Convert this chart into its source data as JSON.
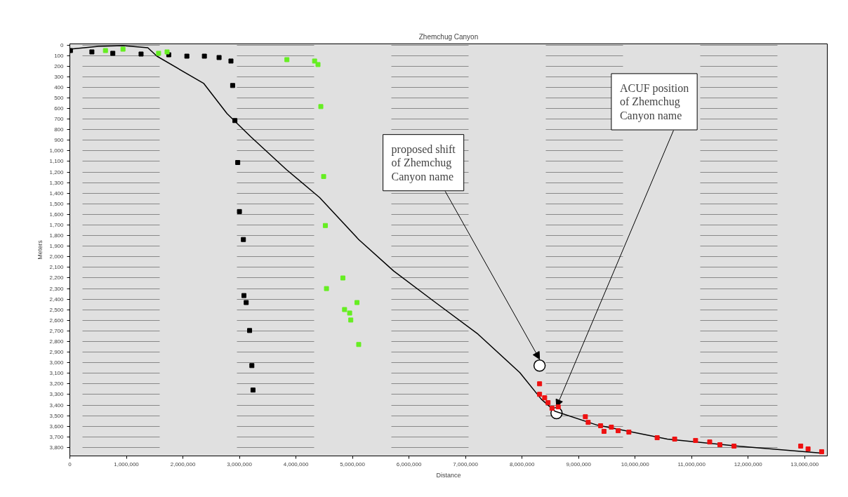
{
  "chart_data": {
    "type": "scatter",
    "title": "Zhemchug Canyon",
    "xlabel": "Distance",
    "ylabel": "Meters",
    "xlim": [
      0,
      13400000
    ],
    "ylim": [
      3880,
      -10
    ],
    "xticks": [
      {
        "value": 0,
        "label": "0"
      },
      {
        "value": 1000000,
        "label": "1,000,000"
      },
      {
        "value": 2000000,
        "label": "2,000,000"
      },
      {
        "value": 3000000,
        "label": "3,000,000"
      },
      {
        "value": 4000000,
        "label": "4,000,000"
      },
      {
        "value": 5000000,
        "label": "5,000,000"
      },
      {
        "value": 6000000,
        "label": "6,000,000"
      },
      {
        "value": 7000000,
        "label": "7,000,000"
      },
      {
        "value": 8000000,
        "label": "8,000,000"
      },
      {
        "value": 9000000,
        "label": "9,000,000"
      },
      {
        "value": 10000000,
        "label": "10,000,000"
      },
      {
        "value": 11000000,
        "label": "11,000,000"
      },
      {
        "value": 12000000,
        "label": "12,000,000"
      },
      {
        "value": 13000000,
        "label": "13,000,000"
      }
    ],
    "yticks": [
      0,
      100,
      200,
      300,
      400,
      500,
      600,
      700,
      800,
      900,
      {
        "value": 1000,
        "label": "1,000"
      },
      {
        "value": 1100,
        "label": "1,100"
      },
      {
        "value": 1200,
        "label": "1,200"
      },
      {
        "value": 1300,
        "label": "1,300"
      },
      {
        "value": 1400,
        "label": "1,400"
      },
      {
        "value": 1500,
        "label": "1,500"
      },
      {
        "value": 1600,
        "label": "1,600"
      },
      {
        "value": 1700,
        "label": "1,700"
      },
      {
        "value": 1800,
        "label": "1,800"
      },
      {
        "value": 1900,
        "label": "1,900"
      },
      {
        "value": 2000,
        "label": "2,000"
      },
      {
        "value": 2100,
        "label": "2,100"
      },
      {
        "value": 2200,
        "label": "2,200"
      },
      {
        "value": 2300,
        "label": "2,300"
      },
      {
        "value": 2400,
        "label": "2,400"
      },
      {
        "value": 2500,
        "label": "2,500"
      },
      {
        "value": 2600,
        "label": "2,600"
      },
      {
        "value": 2700,
        "label": "2,700"
      },
      {
        "value": 2800,
        "label": "2,800"
      },
      {
        "value": 2900,
        "label": "2,900"
      },
      {
        "value": 3000,
        "label": "3,000"
      },
      {
        "value": 3100,
        "label": "3,100"
      },
      {
        "value": 3200,
        "label": "3,200"
      },
      {
        "value": 3300,
        "label": "3,300"
      },
      {
        "value": 3400,
        "label": "3,400"
      },
      {
        "value": 3500,
        "label": "3,500"
      },
      {
        "value": 3600,
        "label": "3,600"
      },
      {
        "value": 3700,
        "label": "3,700"
      },
      {
        "value": 3800,
        "label": "3,800"
      }
    ],
    "grid": "y",
    "marker": "square",
    "series": [
      {
        "type": "line",
        "marker": "none",
        "color": "#000000",
        "x": [
          0,
          510000,
          940000,
          1380000,
          1540000,
          2370000,
          2780000,
          3200000,
          3830000,
          4420000,
          5110000,
          5730000,
          6470000,
          7220000,
          7960000,
          8340000,
          8580000,
          9330000,
          10570000,
          11810000,
          13300000
        ],
        "values": [
          40,
          13,
          7,
          26,
          106,
          364,
          648,
          866,
          1176,
          1441,
          1837,
          2135,
          2432,
          2730,
          3093,
          3344,
          3457,
          3589,
          3721,
          3787,
          3853
        ]
      },
      {
        "color": "#000000",
        "x": [
          10000,
          390000,
          760000,
          1260000,
          1750000,
          2070000,
          2380000,
          2640000,
          2850000,
          2880000,
          2920000,
          2970000,
          3000000,
          3070000,
          3080000,
          3120000,
          3180000,
          3220000,
          3240000
        ],
        "values": [
          53,
          66,
          79,
          86,
          93,
          106,
          106,
          119,
          152,
          383,
          714,
          1110,
          1573,
          1837,
          2366,
          2432,
          2696,
          3027,
          3258
        ]
      },
      {
        "color": "#66ee22",
        "x": [
          630000,
          940000,
          1570000,
          1720000,
          3840000,
          4330000,
          4390000,
          4440000,
          4490000,
          4520000,
          4540000,
          4830000,
          4860000,
          4950000,
          4970000,
          5080000,
          5110000
        ],
        "values": [
          53,
          40,
          79,
          66,
          139,
          152,
          185,
          582,
          1242,
          1705,
          2300,
          2200,
          2498,
          2531,
          2597,
          2432,
          2828
        ]
      },
      {
        "color": "#ee1111",
        "x": [
          8310000,
          8310000,
          8400000,
          8460000,
          8530000,
          8640000,
          9120000,
          9170000,
          9390000,
          9450000,
          9580000,
          9700000,
          9890000,
          10390000,
          10700000,
          11070000,
          11320000,
          11500000,
          11750000,
          12930000,
          13060000,
          13300000
        ],
        "values": [
          3199,
          3298,
          3331,
          3377,
          3430,
          3417,
          3510,
          3563,
          3595,
          3648,
          3608,
          3642,
          3655,
          3708,
          3721,
          3734,
          3748,
          3774,
          3787,
          3787,
          3814,
          3840
        ]
      }
    ],
    "annotations": [
      "proposed shift of Zhemchug Canyon name",
      "ACUF position of Zhemchug Canyon name"
    ]
  }
}
